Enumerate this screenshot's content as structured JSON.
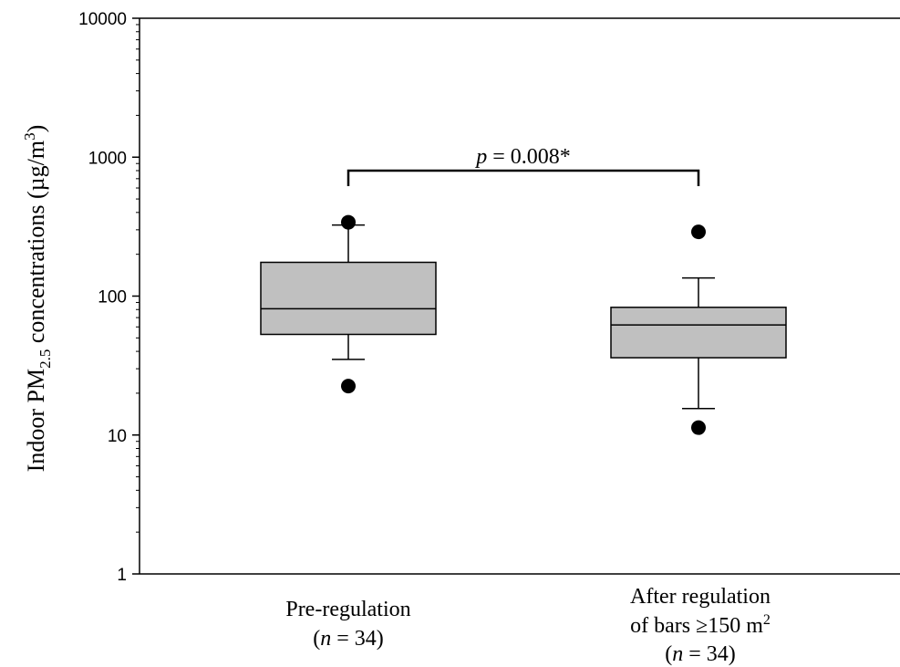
{
  "chart_data": {
    "type": "box",
    "title": "",
    "ylabel": {
      "prefix": "Indoor PM",
      "sub": "2.5",
      "middle": " concentrations (µg/m",
      "sup": "3",
      "suffix": ")"
    },
    "y_scale": "log",
    "ylim": [
      1,
      10000
    ],
    "y_ticks": [
      {
        "value": 1,
        "label": "1"
      },
      {
        "value": 10,
        "label": "10"
      },
      {
        "value": 100,
        "label": "100"
      },
      {
        "value": 1000,
        "label": "1000"
      },
      {
        "value": 10000,
        "label": "10000"
      }
    ],
    "grid": false,
    "categories": [
      {
        "label_lines": [
          {
            "text": "Pre-regulation"
          },
          {
            "n_prefix": "(",
            "n_symbol": "n",
            "n_value": " = 34)"
          }
        ]
      },
      {
        "label_lines": [
          {
            "text": "After regulation"
          },
          {
            "text": "of bars ≥150 m",
            "sup": "2"
          },
          {
            "n_prefix": "(",
            "n_symbol": "n",
            "n_value": " = 34)"
          }
        ]
      }
    ],
    "boxes": [
      {
        "whisker_low": 35,
        "q1": 53,
        "median": 81,
        "q3": 175,
        "whisker_high": 325,
        "outliers": [
          22.5,
          340
        ]
      },
      {
        "whisker_low": 15.5,
        "q1": 36,
        "median": 62,
        "q3": 83,
        "whisker_high": 135,
        "outliers": [
          11.3,
          290
        ]
      }
    ],
    "box_fill": "#c0c0c0",
    "annotation": {
      "p_symbol": "p",
      "text": " = 0.008*",
      "y_value": 800
    }
  }
}
